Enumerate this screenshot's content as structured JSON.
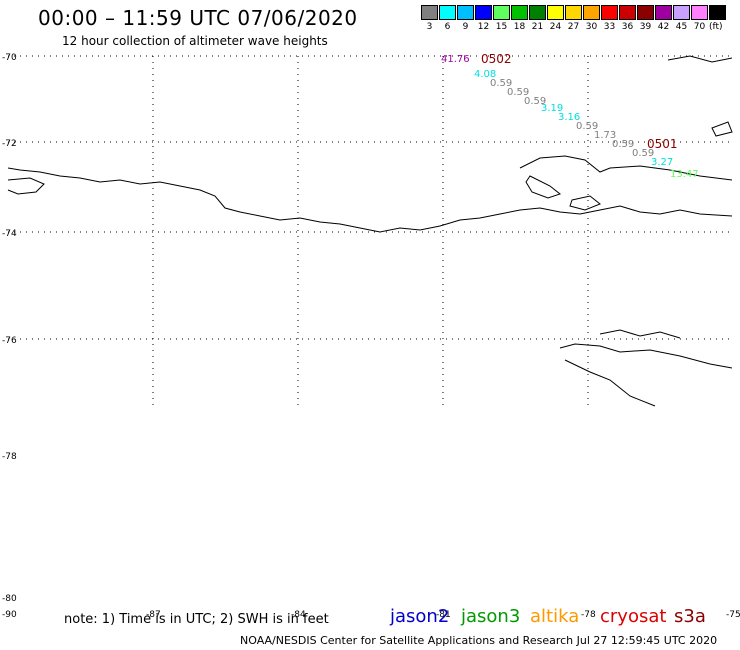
{
  "header": {
    "title": "00:00 – 11:59 UTC 07/06/2020",
    "subtitle": "12 hour collection of altimeter wave heights"
  },
  "legend": {
    "swatches": [
      {
        "label": "3",
        "color": "#808080"
      },
      {
        "label": "6",
        "color": "#00ffff"
      },
      {
        "label": "9",
        "color": "#00bfff"
      },
      {
        "label": "12",
        "color": "#0000ff"
      },
      {
        "label": "15",
        "color": "#5fff5f"
      },
      {
        "label": "18",
        "color": "#00c000"
      },
      {
        "label": "21",
        "color": "#008000"
      },
      {
        "label": "24",
        "color": "#ffff00"
      },
      {
        "label": "27",
        "color": "#ffd700"
      },
      {
        "label": "30",
        "color": "#ffa500"
      },
      {
        "label": "33",
        "color": "#ff0000"
      },
      {
        "label": "36",
        "color": "#cc0000"
      },
      {
        "label": "39",
        "color": "#8b0000"
      },
      {
        "label": "42",
        "color": "#a000a0"
      },
      {
        "label": "45",
        "color": "#c8a0ff"
      },
      {
        "label": "70",
        "color": "#ff80ff"
      },
      {
        "label": "",
        "color": "#000000"
      }
    ],
    "unit": "(ft)"
  },
  "latitude_labels": [
    "-70",
    "-72",
    "-74",
    "-76",
    "-78",
    "-80",
    "-90"
  ],
  "longitude_labels": [
    "-87",
    "-84",
    "-81",
    "-78",
    "-75"
  ],
  "wave_heights": [
    {
      "text": "41.76",
      "color": "#a000a0"
    },
    {
      "text": "4.08",
      "color": "#00e0e0"
    },
    {
      "text": "0.59",
      "color": "#808080"
    },
    {
      "text": "0.59",
      "color": "#808080"
    },
    {
      "text": "0.59",
      "color": "#808080"
    },
    {
      "text": "3.19",
      "color": "#00e0e0"
    },
    {
      "text": "3.16",
      "color": "#00e0e0"
    },
    {
      "text": "0.59",
      "color": "#808080"
    },
    {
      "text": "1.73",
      "color": "#808080"
    },
    {
      "text": "0.59",
      "color": "#808080"
    },
    {
      "text": "0.59",
      "color": "#808080"
    },
    {
      "text": "3.27",
      "color": "#00e0e0"
    },
    {
      "text": "13.47",
      "color": "#5fff5f"
    }
  ],
  "pass_times": [
    {
      "text": "0502",
      "color": "#8b0000"
    },
    {
      "text": "0501",
      "color": "#8b0000"
    }
  ],
  "note": "note: 1) Time is in UTC; 2) SWH is in feet",
  "satellites": [
    {
      "name": "jason2",
      "color": "#0000cc"
    },
    {
      "name": "jason3",
      "color": "#009900"
    },
    {
      "name": "altika",
      "color": "#ff9900"
    },
    {
      "name": "cryosat",
      "color": "#dd0000"
    },
    {
      "name": "s3a",
      "color": "#8b0000"
    }
  ],
  "footer": "NOAA/NESDIS Center for Satellite Applications and Research    Jul 27 12:59:45 UTC 2020"
}
